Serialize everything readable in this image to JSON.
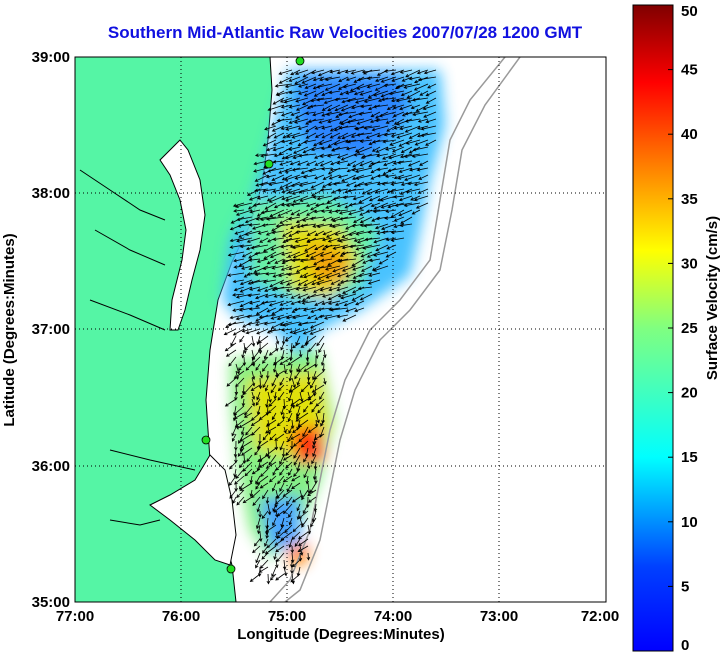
{
  "chart_data": {
    "type": "vector-field-map",
    "title": "Southern Mid-Atlantic Raw Velocities 2007/07/28 1200 GMT",
    "xlabel": "Longitude (Degrees:Minutes)",
    "ylabel": "Latitude (Degrees:Minutes)",
    "x_ticks": [
      "77:00",
      "76:00",
      "75:00",
      "74:00",
      "73:00",
      "72:00"
    ],
    "y_ticks": [
      "39:00",
      "38:00",
      "37:00",
      "36:00",
      "35:00"
    ],
    "xlim": [
      -77,
      -72
    ],
    "ylim": [
      35,
      39
    ],
    "grid": true,
    "colorbar": {
      "label": "Surface Velocity (cm/s)",
      "min": 0,
      "max": 50,
      "ticks": [
        "0",
        "5",
        "10",
        "15",
        "20",
        "25",
        "30",
        "35",
        "40",
        "45",
        "50"
      ],
      "colormap": "jet"
    },
    "colors": {
      "land": "#55f5a5",
      "title": "#1010e0",
      "coast": "#000000",
      "bathymetry": "#9a9a9a",
      "site_marker": "#22dd22"
    }
  }
}
